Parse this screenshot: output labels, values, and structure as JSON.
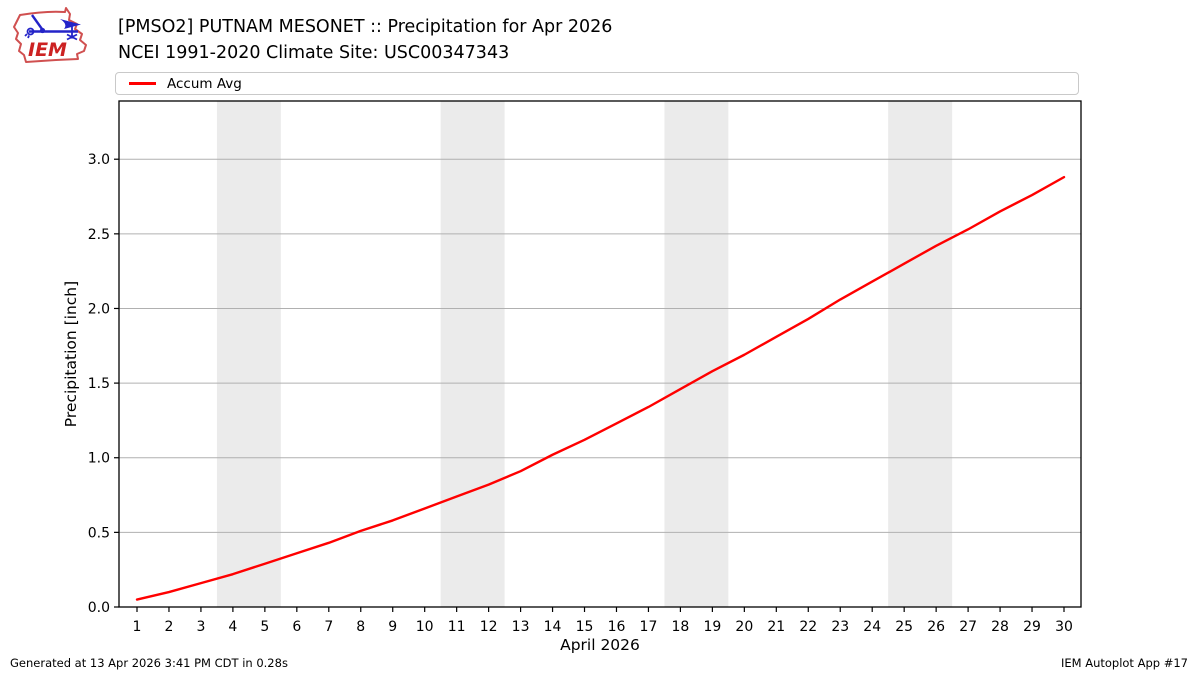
{
  "header": {
    "title": "[PMSO2] PUTNAM MESONET :: Precipitation for Apr 2026",
    "subtitle": "NCEI 1991-2020 Climate Site: USC00347343",
    "logo_text": "IEM"
  },
  "legend": {
    "items": [
      {
        "label": "Accum Avg",
        "color": "#ff0000"
      }
    ]
  },
  "chart_data": {
    "type": "line",
    "title": "[PMSO2] PUTNAM MESONET :: Precipitation for Apr 2026",
    "subtitle": "NCEI 1991-2020 Climate Site: USC00347343",
    "xlabel": "April 2026",
    "ylabel": "Precipitation [inch]",
    "x": [
      1,
      2,
      3,
      4,
      5,
      6,
      7,
      8,
      9,
      10,
      11,
      12,
      13,
      14,
      15,
      16,
      17,
      18,
      19,
      20,
      21,
      22,
      23,
      24,
      25,
      26,
      27,
      28,
      29,
      30
    ],
    "series": [
      {
        "name": "Accum Avg",
        "color": "#ff0000",
        "values": [
          0.05,
          0.1,
          0.16,
          0.22,
          0.29,
          0.36,
          0.43,
          0.51,
          0.58,
          0.66,
          0.74,
          0.82,
          0.91,
          1.02,
          1.12,
          1.23,
          1.34,
          1.46,
          1.58,
          1.69,
          1.81,
          1.93,
          2.06,
          2.18,
          2.3,
          2.42,
          2.53,
          2.65,
          2.76,
          2.88
        ]
      }
    ],
    "ylim": [
      0.0,
      3.39
    ],
    "yticks": [
      0.0,
      0.5,
      1.0,
      1.5,
      2.0,
      2.5,
      3.0
    ],
    "grid": "horizontal",
    "gridline_color": "#b0b0b0",
    "weekend_bands": [
      [
        3.5,
        5.5
      ],
      [
        10.5,
        12.5
      ],
      [
        17.5,
        19.5
      ],
      [
        24.5,
        26.5
      ]
    ],
    "band_color": "#ebebeb",
    "legend_position": "top"
  },
  "footer": {
    "generated": "Generated at 13 Apr 2026 3:41 PM CDT in 0.28s",
    "credit": "IEM Autoplot App #17"
  }
}
